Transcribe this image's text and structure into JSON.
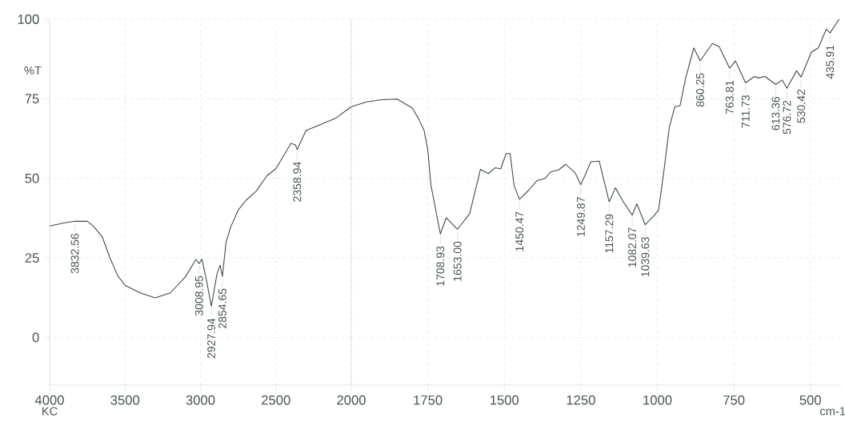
{
  "chart_data": [
    {
      "type": "line",
      "ylabel": "%T",
      "xlim": [
        4000,
        2000
      ],
      "ylim": [
        -15,
        100
      ],
      "xticks": [
        4000,
        3500,
        3000,
        2500,
        2000
      ],
      "yticks": [
        0,
        25,
        50,
        75,
        100
      ],
      "grid": true,
      "color": "#3c4848",
      "marker": "none",
      "line_style": "solid",
      "x": [
        4000,
        3900,
        3832.56,
        3750,
        3710,
        3650,
        3600,
        3550,
        3500,
        3400,
        3300,
        3200,
        3100,
        3030,
        3008.95,
        2990,
        2960,
        2927.94,
        2890,
        2870,
        2854.65,
        2830,
        2800,
        2750,
        2700,
        2630,
        2560,
        2500,
        2400,
        2370,
        2358.94,
        2340,
        2300,
        2200,
        2100,
        2000
      ],
      "values": [
        35,
        36,
        36.5,
        36.5,
        35,
        31.5,
        25,
        19.5,
        16.4,
        14,
        12.4,
        14,
        19,
        24.5,
        23.2,
        24.6,
        18,
        9.8,
        20,
        22.7,
        19.2,
        30,
        34.6,
        40,
        43,
        46,
        50.8,
        53,
        61,
        60.5,
        59,
        61,
        65,
        67,
        69,
        72.5
      ],
      "annotations": [
        {
          "text": "3832.56",
          "x": 3832.56,
          "y": 36.5
        },
        {
          "text": "3008.95",
          "x": 3008.95,
          "y": 23.2
        },
        {
          "text": "2927.94",
          "x": 2927.94,
          "y": 9.8
        },
        {
          "text": "2854.65",
          "x": 2854.65,
          "y": 19.2
        },
        {
          "text": "2358.94",
          "x": 2358.94,
          "y": 59
        },
        "KC"
      ]
    },
    {
      "type": "line",
      "xlabel": "cm-1",
      "xlim": [
        2000,
        400
      ],
      "ylim": [
        -15,
        100
      ],
      "xticks": [
        1750,
        1500,
        1250,
        1000,
        750,
        500
      ],
      "yticks": [
        0,
        25,
        50,
        75,
        100
      ],
      "tick_labels": "x",
      "grid": true,
      "color": "#3c4848",
      "marker": "none",
      "line_style": "solid",
      "x": [
        2000,
        1950,
        1900,
        1850,
        1800,
        1780,
        1762,
        1750,
        1740,
        1708.93,
        1690,
        1653,
        1620,
        1613,
        1578,
        1552,
        1530,
        1512,
        1494,
        1481,
        1468,
        1450.47,
        1419,
        1393,
        1366,
        1349,
        1322,
        1300,
        1269,
        1249.87,
        1217,
        1190,
        1157.29,
        1137,
        1111,
        1082.07,
        1067,
        1039.63,
        1010,
        996,
        978,
        961,
        943,
        926,
        908,
        881,
        860.25,
        820,
        798,
        763.81,
        745,
        711.73,
        683,
        670,
        648,
        613.36,
        592,
        576.72,
        545,
        530.42,
        497,
        474,
        448,
        435.91,
        406
      ],
      "values": [
        72.5,
        74,
        74.7,
        74.9,
        72,
        68.7,
        65,
        59,
        48,
        32.5,
        37.6,
        34,
        38,
        39,
        52.8,
        51.5,
        53.3,
        53,
        57.8,
        57.8,
        47.7,
        43.4,
        46.4,
        49.3,
        50,
        52,
        52.7,
        54.4,
        51.8,
        48,
        55.2,
        55.4,
        42.6,
        47,
        42.6,
        38.4,
        42,
        35.4,
        38.4,
        40,
        52.8,
        66,
        72.5,
        72.8,
        81.3,
        91,
        86.9,
        92.4,
        91.4,
        84.6,
        86.9,
        80,
        82,
        81.6,
        82,
        79.5,
        80.9,
        78.3,
        83.8,
        81.8,
        89.6,
        91,
        96.9,
        95.7,
        100
      ],
      "annotations": [
        {
          "text": "1708.93",
          "x": 1708.93,
          "y": 32.5
        },
        {
          "text": "1653.00",
          "x": 1653,
          "y": 34
        },
        {
          "text": "1450.47",
          "x": 1450.47,
          "y": 43.4
        },
        {
          "text": "1249.87",
          "x": 1249.87,
          "y": 48
        },
        {
          "text": "1157.29",
          "x": 1157.29,
          "y": 42.6
        },
        {
          "text": "1082.07",
          "x": 1082.07,
          "y": 38.4
        },
        {
          "text": "1039.63",
          "x": 1039.63,
          "y": 35.4
        },
        {
          "text": "860.25",
          "x": 860.25,
          "y": 86.9
        },
        {
          "text": "763.81",
          "x": 763.81,
          "y": 84.6
        },
        {
          "text": "711.73",
          "x": 711.73,
          "y": 80
        },
        {
          "text": "613.36",
          "x": 613.36,
          "y": 79.5
        },
        {
          "text": "576.72",
          "x": 576.72,
          "y": 78.3
        },
        {
          "text": "530.42",
          "x": 530.42,
          "y": 81.8
        },
        {
          "text": "435.91",
          "x": 435.91,
          "y": 95.7
        }
      ]
    }
  ]
}
